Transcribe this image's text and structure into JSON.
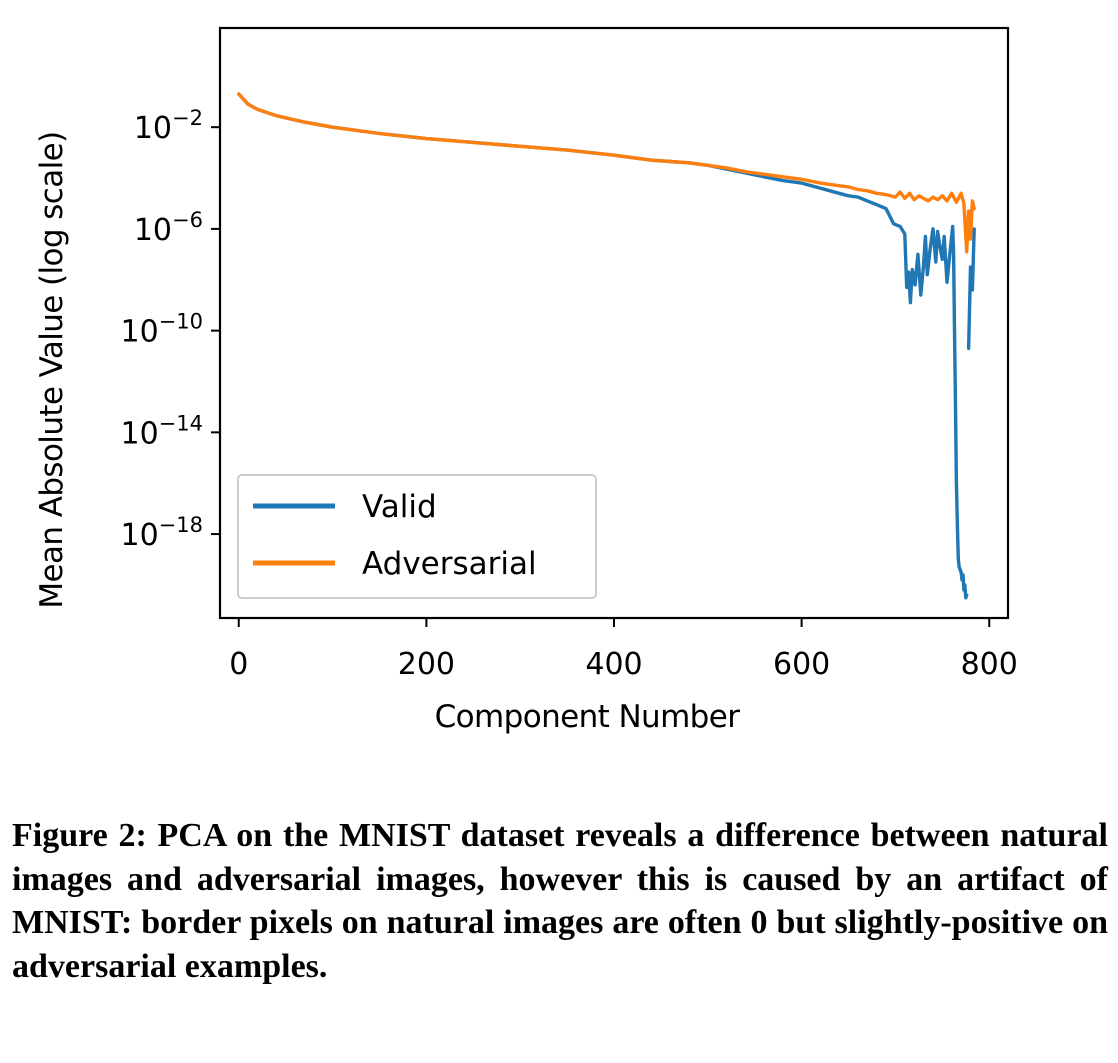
{
  "chart_data": {
    "type": "line",
    "xlabel": "Component Number",
    "ylabel": "Mean Absolute Value (log scale)",
    "xlim": [
      -20,
      820
    ],
    "ylim_log10": [
      -21.3,
      1.9
    ],
    "y_scale": "log",
    "x_ticks": [
      0,
      200,
      400,
      600,
      800
    ],
    "y_ticks": [
      {
        "base": "10",
        "exp": "−2",
        "value": -2
      },
      {
        "base": "10",
        "exp": "−6",
        "value": -6
      },
      {
        "base": "10",
        "exp": "−10",
        "value": -10
      },
      {
        "base": "10",
        "exp": "−14",
        "value": -14
      },
      {
        "base": "10",
        "exp": "−18",
        "value": -18
      }
    ],
    "grid": false,
    "legend_position": "lower-left",
    "series": [
      {
        "name": "Valid",
        "color": "#1f77b4",
        "points": [
          [
            0,
            -0.7
          ],
          [
            5,
            -0.9
          ],
          [
            10,
            -1.1
          ],
          [
            20,
            -1.3
          ],
          [
            40,
            -1.55
          ],
          [
            70,
            -1.8
          ],
          [
            100,
            -2.0
          ],
          [
            150,
            -2.25
          ],
          [
            200,
            -2.45
          ],
          [
            250,
            -2.6
          ],
          [
            300,
            -2.75
          ],
          [
            350,
            -2.9
          ],
          [
            400,
            -3.1
          ],
          [
            420,
            -3.2
          ],
          [
            440,
            -3.3
          ],
          [
            460,
            -3.35
          ],
          [
            480,
            -3.4
          ],
          [
            500,
            -3.5
          ],
          [
            520,
            -3.65
          ],
          [
            540,
            -3.8
          ],
          [
            560,
            -3.95
          ],
          [
            580,
            -4.1
          ],
          [
            600,
            -4.2
          ],
          [
            620,
            -4.4
          ],
          [
            640,
            -4.6
          ],
          [
            650,
            -4.7
          ],
          [
            660,
            -4.75
          ],
          [
            670,
            -4.9
          ],
          [
            680,
            -5.05
          ],
          [
            690,
            -5.2
          ],
          [
            698,
            -5.8
          ],
          [
            705,
            -5.9
          ],
          [
            710,
            -6.2
          ],
          [
            712,
            -8.3
          ],
          [
            714,
            -7.7
          ],
          [
            716,
            -8.9
          ],
          [
            718,
            -7.6
          ],
          [
            721,
            -8.2
          ],
          [
            724,
            -7.0
          ],
          [
            727,
            -8.6
          ],
          [
            730,
            -7.4
          ],
          [
            732,
            -6.3
          ],
          [
            734,
            -7.8
          ],
          [
            737,
            -6.8
          ],
          [
            740,
            -6.0
          ],
          [
            743,
            -7.3
          ],
          [
            745,
            -6.1
          ],
          [
            747,
            -6.6
          ],
          [
            750,
            -7.2
          ],
          [
            752,
            -6.3
          ],
          [
            755,
            -8.1
          ],
          [
            758,
            -7.0
          ],
          [
            761,
            -5.9
          ],
          [
            762,
            -7.0
          ],
          [
            763,
            -10.0
          ],
          [
            764,
            -13.0
          ],
          [
            765,
            -16.0
          ],
          [
            766,
            -17.5
          ],
          [
            767,
            -19.0
          ],
          [
            768,
            -19.3
          ],
          [
            770,
            -19.5
          ],
          [
            771,
            -19.8
          ],
          [
            772,
            -19.6
          ],
          [
            773,
            -20.2
          ],
          [
            774,
            -20.0
          ],
          [
            775,
            -20.5
          ],
          [
            776,
            -20.4
          ]
        ],
        "tail_points": [
          [
            778,
            -10.7
          ],
          [
            780,
            -7.5
          ],
          [
            782,
            -8.4
          ],
          [
            784,
            -6.0
          ]
        ]
      },
      {
        "name": "Adversarial",
        "color": "#ff7f0e",
        "points": [
          [
            0,
            -0.7
          ],
          [
            5,
            -0.9
          ],
          [
            10,
            -1.1
          ],
          [
            20,
            -1.3
          ],
          [
            40,
            -1.55
          ],
          [
            70,
            -1.8
          ],
          [
            100,
            -2.0
          ],
          [
            150,
            -2.25
          ],
          [
            200,
            -2.45
          ],
          [
            250,
            -2.6
          ],
          [
            300,
            -2.75
          ],
          [
            350,
            -2.9
          ],
          [
            400,
            -3.1
          ],
          [
            420,
            -3.2
          ],
          [
            440,
            -3.3
          ],
          [
            460,
            -3.35
          ],
          [
            480,
            -3.4
          ],
          [
            500,
            -3.5
          ],
          [
            520,
            -3.6
          ],
          [
            540,
            -3.75
          ],
          [
            560,
            -3.85
          ],
          [
            580,
            -3.95
          ],
          [
            600,
            -4.05
          ],
          [
            620,
            -4.2
          ],
          [
            640,
            -4.3
          ],
          [
            650,
            -4.35
          ],
          [
            660,
            -4.45
          ],
          [
            670,
            -4.5
          ],
          [
            680,
            -4.6
          ],
          [
            690,
            -4.65
          ],
          [
            700,
            -4.75
          ],
          [
            705,
            -4.55
          ],
          [
            710,
            -4.8
          ],
          [
            715,
            -4.6
          ],
          [
            720,
            -4.85
          ],
          [
            725,
            -4.7
          ],
          [
            730,
            -4.8
          ],
          [
            735,
            -4.9
          ],
          [
            740,
            -4.75
          ],
          [
            745,
            -4.85
          ],
          [
            750,
            -4.7
          ],
          [
            755,
            -4.9
          ],
          [
            760,
            -4.6
          ],
          [
            765,
            -4.95
          ],
          [
            770,
            -4.6
          ],
          [
            773,
            -5.0
          ],
          [
            776,
            -6.9
          ],
          [
            778,
            -5.3
          ],
          [
            780,
            -6.4
          ],
          [
            782,
            -4.9
          ],
          [
            784,
            -5.2
          ]
        ]
      }
    ]
  },
  "caption": "Figure 2: PCA on the MNIST dataset reveals a difference between natural images and adversarial images, however this is caused by an artifact of MNIST: border pixels on natural images are often 0 but slightly-positive on adversarial examples."
}
